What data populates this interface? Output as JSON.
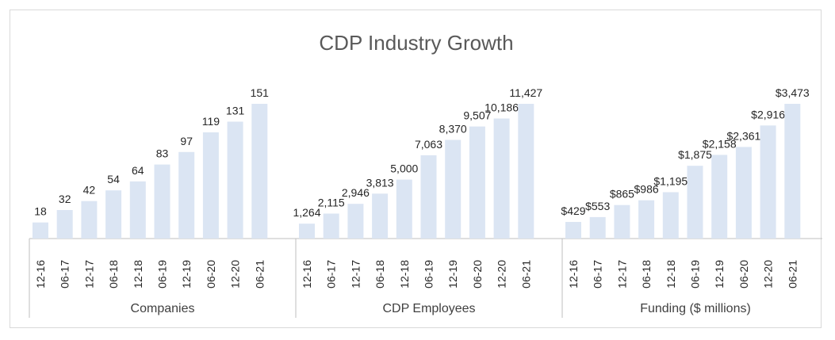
{
  "chart_data": {
    "type": "bar",
    "title": "CDP Industry Growth",
    "xlabel": "",
    "ylabel": "",
    "colors": {
      "bar": "#dbe5f3",
      "axis": "#bfbfbf",
      "text": "#262626",
      "title": "#595959"
    },
    "groups": [
      {
        "name": "Companies",
        "categories": [
          "12-16",
          "06-17",
          "12-17",
          "06-18",
          "12-18",
          "06-19",
          "12-19",
          "06-20",
          "12-20",
          "06-21"
        ],
        "values": [
          18,
          32,
          42,
          54,
          64,
          83,
          97,
          119,
          131,
          151
        ],
        "labels": [
          "18",
          "32",
          "42",
          "54",
          "64",
          "83",
          "97",
          "119",
          "131",
          "151"
        ],
        "ylim": [
          0,
          151
        ]
      },
      {
        "name": "CDP Employees",
        "categories": [
          "12-16",
          "06-17",
          "12-17",
          "06-18",
          "12-18",
          "06-19",
          "12-19",
          "06-20",
          "12-20",
          "06-21"
        ],
        "values": [
          1264,
          2115,
          2946,
          3813,
          5000,
          7063,
          8370,
          9507,
          10186,
          11427
        ],
        "labels": [
          "1,264",
          "2,115",
          "2,946",
          "3,813",
          "5,000",
          "7,063",
          "8,370",
          "9,507",
          "10,186",
          "11,427"
        ],
        "ylim": [
          0,
          11427
        ]
      },
      {
        "name": "Funding ($ millions)",
        "categories": [
          "12-16",
          "06-17",
          "12-17",
          "06-18",
          "12-18",
          "06-19",
          "12-19",
          "06-20",
          "12-20",
          "06-21"
        ],
        "values": [
          429,
          553,
          865,
          986,
          1195,
          1875,
          2158,
          2361,
          2916,
          3473
        ],
        "labels": [
          "$429",
          "$553",
          "$865",
          "$986",
          "$1,195",
          "$1,875",
          "$2,158",
          "$2,361",
          "$2,916",
          "$3,473"
        ],
        "ylim": [
          0,
          3473
        ]
      }
    ]
  }
}
